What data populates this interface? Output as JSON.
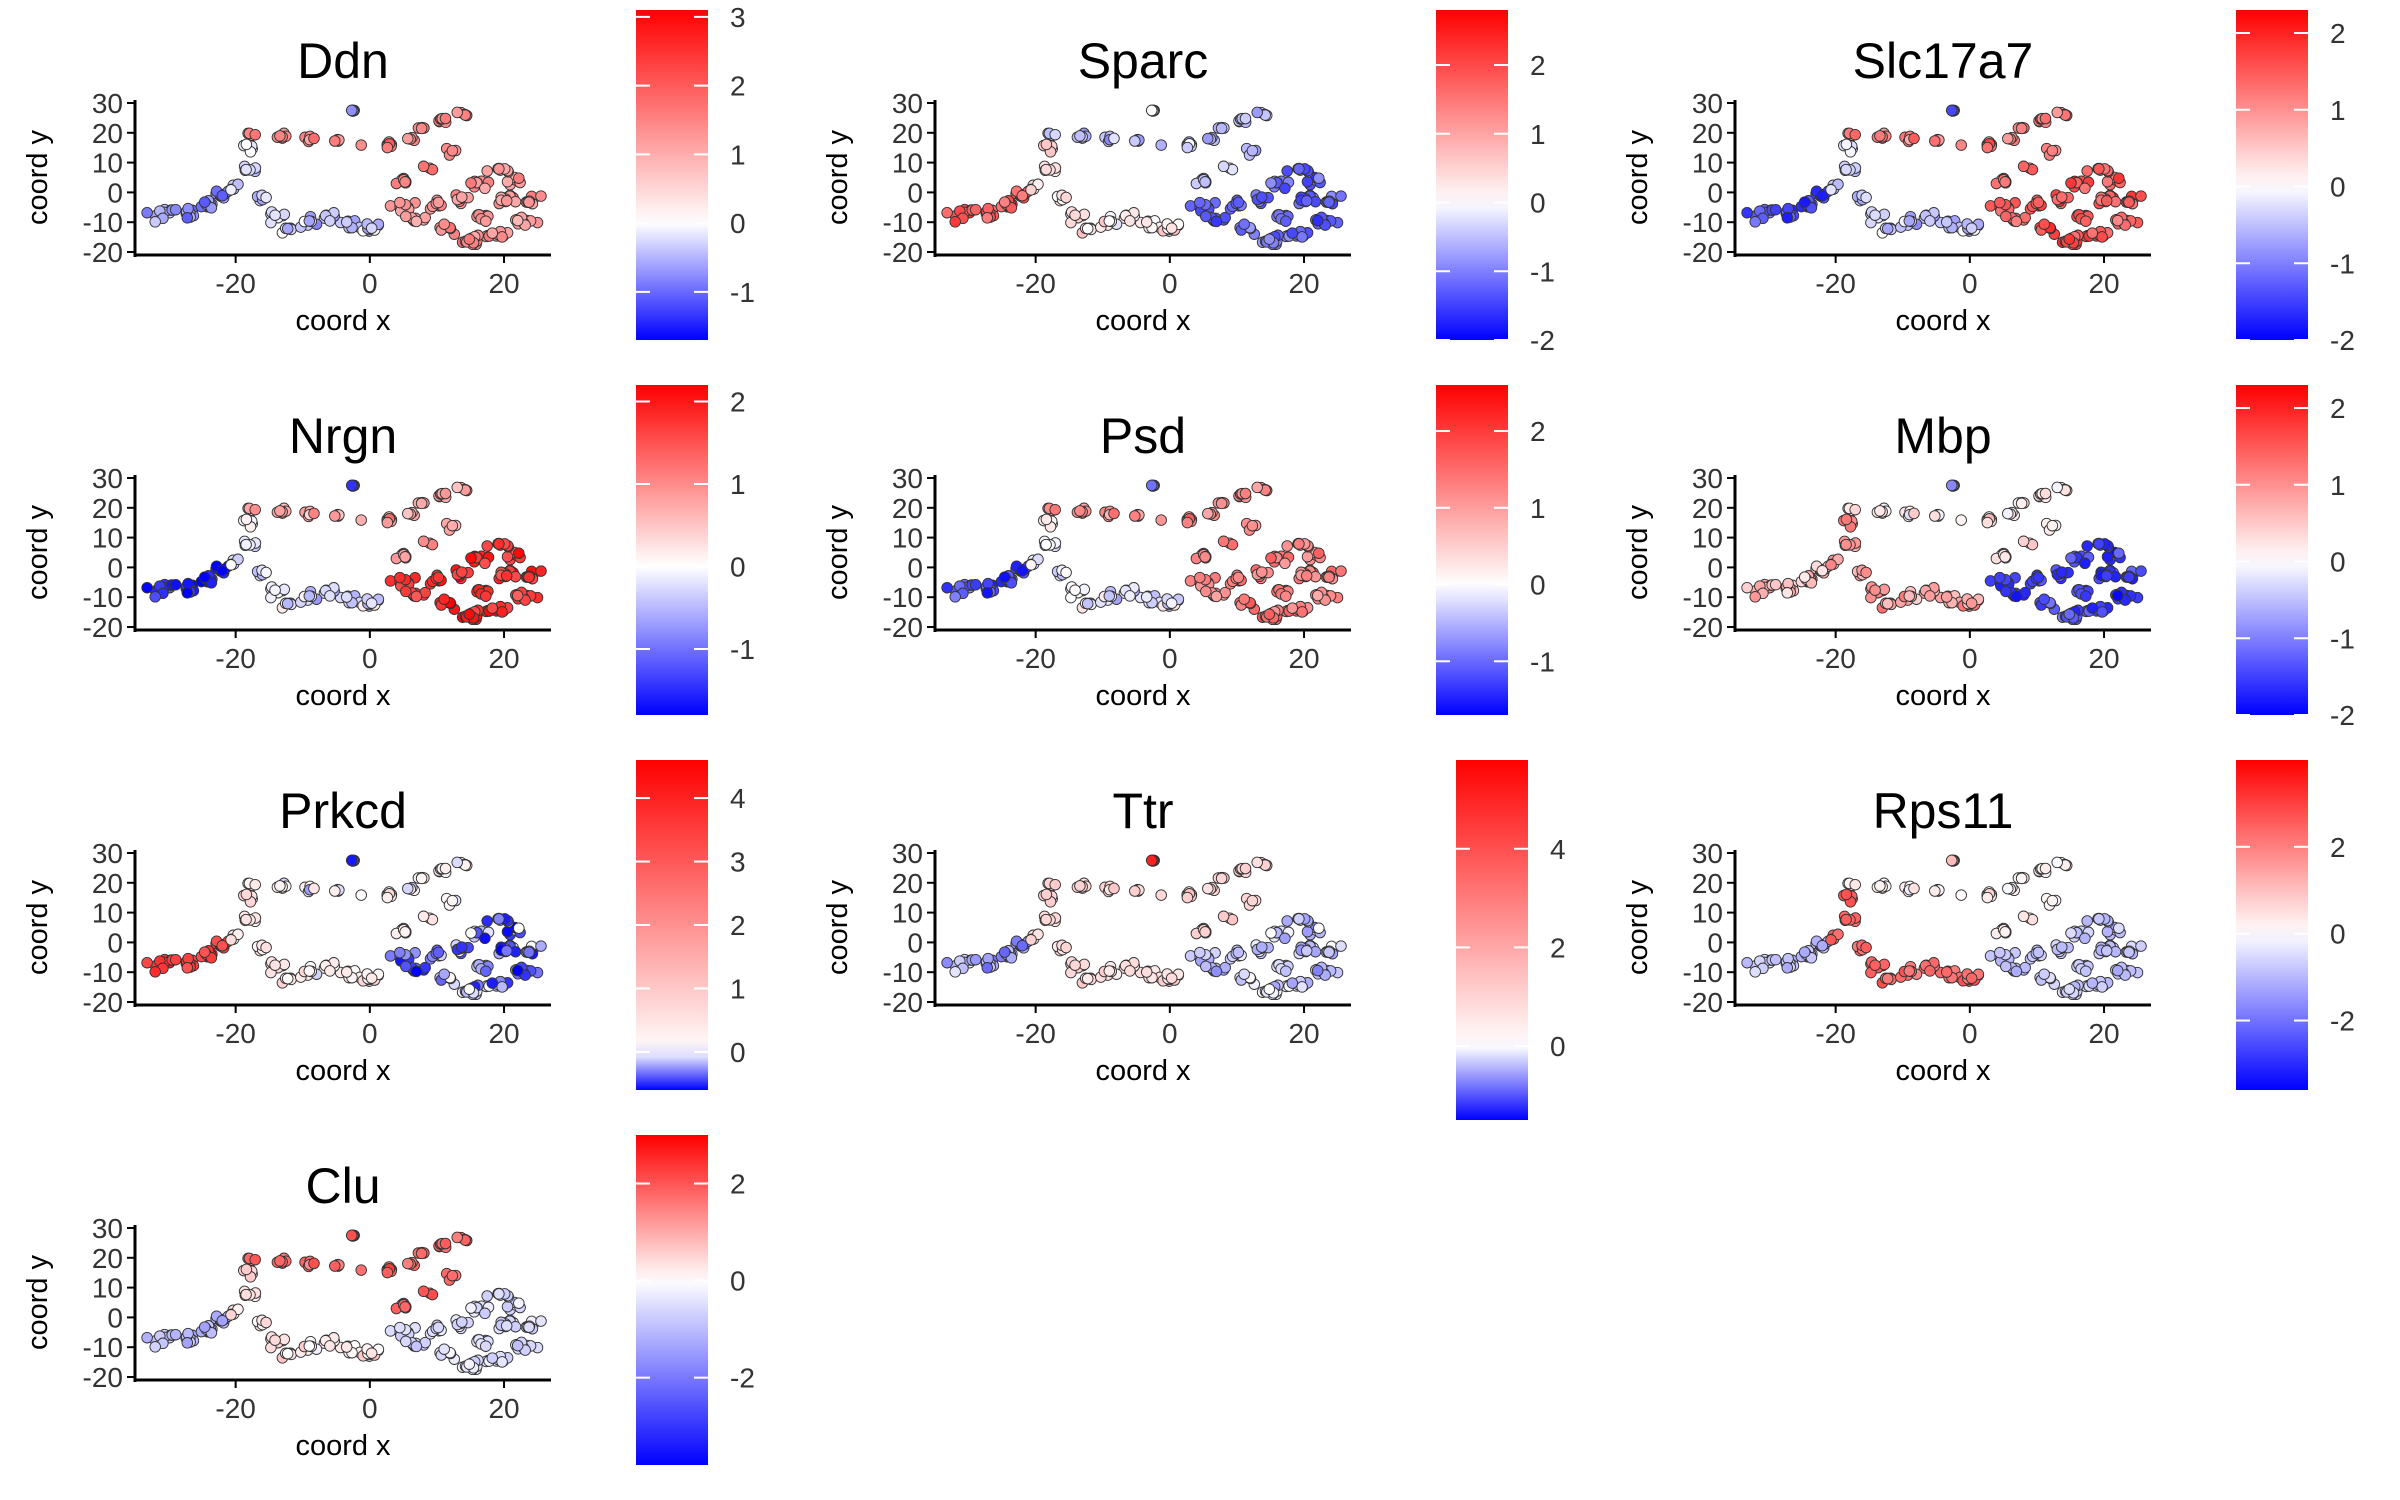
{
  "figure": {
    "axis_labels": {
      "x": "coord x",
      "y": "coord y"
    },
    "colors": {
      "low": "#0000FF",
      "mid": "#FFFFFF",
      "high": "#FF0000",
      "point_outline": "#333333"
    }
  },
  "chart_data": [
    {
      "type": "scatter",
      "title": "Ddn",
      "xlabel": "coord x",
      "ylabel": "coord y",
      "xlim": [
        -35,
        27
      ],
      "ylim": [
        -21,
        31
      ],
      "x_ticks": [
        "-20",
        "0",
        "20"
      ],
      "y_ticks": [
        "30",
        "20",
        "10",
        "0",
        "-10",
        "-20"
      ],
      "colorbar": {
        "min": -1.7,
        "max": 3.1,
        "ticks": [
          "3",
          "2",
          "1",
          "0",
          "-1"
        ]
      },
      "pattern": {
        "west": -0.7,
        "middle": -0.3,
        "north": 1.5,
        "east": 1.3,
        "isolated": -0.3
      }
    },
    {
      "type": "scatter",
      "title": "Sparc",
      "xlabel": "coord x",
      "ylabel": "coord y",
      "xlim": [
        -35,
        27
      ],
      "ylim": [
        -21,
        31
      ],
      "x_ticks": [
        "-20",
        "0",
        "20"
      ],
      "y_ticks": [
        "30",
        "20",
        "10",
        "0",
        "-10",
        "-20"
      ],
      "colorbar": {
        "min": -2,
        "max": 2.8,
        "ticks": [
          "2",
          "1",
          "0",
          "-1",
          "-2"
        ]
      },
      "pattern": {
        "west": 1.8,
        "middle": 0.3,
        "north": -0.5,
        "east": -1.2,
        "isolated": 0.5
      }
    },
    {
      "type": "scatter",
      "title": "Slc17a7",
      "xlabel": "coord x",
      "ylabel": "coord y",
      "xlim": [
        -35,
        27
      ],
      "ylim": [
        -21,
        31
      ],
      "x_ticks": [
        "-20",
        "0",
        "20"
      ],
      "y_ticks": [
        "30",
        "20",
        "10",
        "0",
        "-10",
        "-20"
      ],
      "colorbar": {
        "min": -2,
        "max": 2.3,
        "ticks": [
          "2",
          "1",
          "0",
          "-1",
          "-2"
        ]
      },
      "pattern": {
        "west": -1.4,
        "middle": -0.4,
        "north": 1.2,
        "east": 1.5,
        "isolated": -1
      }
    },
    {
      "type": "scatter",
      "title": "Nrgn",
      "xlabel": "coord x",
      "ylabel": "coord y",
      "xlim": [
        -35,
        27
      ],
      "ylim": [
        -21,
        31
      ],
      "x_ticks": [
        "-20",
        "0",
        "20"
      ],
      "y_ticks": [
        "30",
        "20",
        "10",
        "0",
        "-10",
        "-20"
      ],
      "colorbar": {
        "min": -1.8,
        "max": 2.2,
        "ticks": [
          "2",
          "1",
          "0",
          "-1"
        ]
      },
      "pattern": {
        "west": -1.6,
        "middle": -0.2,
        "north": 0.8,
        "east": 1.8,
        "isolated": -1
      }
    },
    {
      "type": "scatter",
      "title": "Psd",
      "xlabel": "coord x",
      "ylabel": "coord y",
      "xlim": [
        -35,
        27
      ],
      "ylim": [
        -21,
        31
      ],
      "x_ticks": [
        "-20",
        "0",
        "20"
      ],
      "y_ticks": [
        "30",
        "20",
        "10",
        "0",
        "-10",
        "-20"
      ],
      "colorbar": {
        "min": -1.7,
        "max": 2.6,
        "ticks": [
          "2",
          "1",
          "0",
          "-1"
        ]
      },
      "pattern": {
        "west": -1.2,
        "middle": -0.1,
        "north": 1.2,
        "east": 1.3,
        "isolated": -0.5
      }
    },
    {
      "type": "scatter",
      "title": "Mbp",
      "xlabel": "coord x",
      "ylabel": "coord y",
      "xlim": [
        -35,
        27
      ],
      "ylim": [
        -21,
        31
      ],
      "x_ticks": [
        "-20",
        "0",
        "20"
      ],
      "y_ticks": [
        "30",
        "20",
        "10",
        "0",
        "-10",
        "-20"
      ],
      "colorbar": {
        "min": -2,
        "max": 2.3,
        "ticks": [
          "2",
          "1",
          "0",
          "-1",
          "-2"
        ]
      },
      "pattern": {
        "west": 0.6,
        "middle": 0.9,
        "north": 0.2,
        "east": -1.5,
        "isolated": -0.5
      }
    },
    {
      "type": "scatter",
      "title": "Prkcd",
      "xlabel": "coord x",
      "ylabel": "coord y",
      "xlim": [
        -35,
        27
      ],
      "ylim": [
        -21,
        31
      ],
      "x_ticks": [
        "-20",
        "0",
        "20"
      ],
      "y_ticks": [
        "30",
        "20",
        "10",
        "0",
        "-10",
        "-20"
      ],
      "colorbar": {
        "min": -0.6,
        "max": 4.6,
        "ticks": [
          "4",
          "3",
          "2",
          "1",
          "0"
        ]
      },
      "pattern": {
        "west": 3.5,
        "middle": 0.4,
        "north": 0.2,
        "east": -0.3,
        "isolated": -0.1
      }
    },
    {
      "type": "scatter",
      "title": "Ttr",
      "xlabel": "coord x",
      "ylabel": "coord y",
      "xlim": [
        -35,
        27
      ],
      "ylim": [
        -21,
        31
      ],
      "x_ticks": [
        "-20",
        "0",
        "20"
      ],
      "y_ticks": [
        "30",
        "20",
        "10",
        "0",
        "-10",
        "-20"
      ],
      "colorbar": {
        "min": -1.5,
        "max": 5.8,
        "ticks": [
          "4",
          "2",
          "0"
        ]
      },
      "pattern": {
        "west": -0.5,
        "middle": 0.8,
        "north": 1,
        "east": -0.3,
        "isolated": 5.5
      }
    },
    {
      "type": "scatter",
      "title": "Rps11",
      "xlabel": "coord x",
      "ylabel": "coord y",
      "xlim": [
        -35,
        27
      ],
      "ylim": [
        -21,
        31
      ],
      "x_ticks": [
        "-20",
        "0",
        "20"
      ],
      "y_ticks": [
        "30",
        "20",
        "10",
        "0",
        "-10",
        "-20"
      ],
      "colorbar": {
        "min": -3.6,
        "max": 4,
        "ticks": [
          "2",
          "0",
          "-2"
        ]
      },
      "pattern": {
        "west": -0.8,
        "middle": 2.4,
        "north": 0.2,
        "east": -0.8,
        "isolated": 1.5
      }
    },
    {
      "type": "scatter",
      "title": "Clu",
      "xlabel": "coord x",
      "ylabel": "coord y",
      "xlim": [
        -35,
        27
      ],
      "ylim": [
        -21,
        31
      ],
      "x_ticks": [
        "-20",
        "0",
        "20"
      ],
      "y_ticks": [
        "30",
        "20",
        "10",
        "0",
        "-10",
        "-20"
      ],
      "colorbar": {
        "min": -3.8,
        "max": 3,
        "ticks": [
          "2",
          "0",
          "-2"
        ]
      },
      "pattern": {
        "west": -1,
        "middle": 0.3,
        "north": 1.8,
        "east": -0.5,
        "isolated": 2.5
      }
    }
  ]
}
